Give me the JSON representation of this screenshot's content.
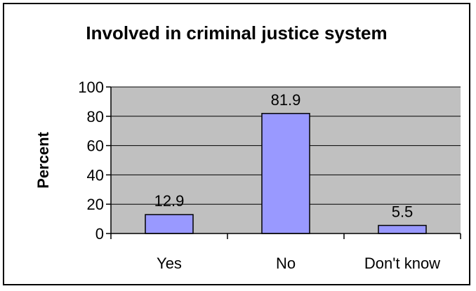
{
  "chart_data": {
    "type": "bar",
    "title": "Involved in criminal justice system",
    "xlabel": "",
    "ylabel": "Percent",
    "categories": [
      "Yes",
      "No",
      "Don't know"
    ],
    "values": [
      12.9,
      81.9,
      5.5
    ],
    "data_labels": [
      "12.9",
      "81.9",
      "5.5"
    ],
    "ylim": [
      0,
      100
    ],
    "yticks": [
      0,
      20,
      40,
      60,
      80,
      100
    ],
    "ytick_labels": [
      "0",
      "20",
      "40",
      "60",
      "80",
      "100"
    ],
    "grid": true,
    "legend": "none",
    "colors": {
      "bar_fill": "#9999ff",
      "bar_stroke": "#000000",
      "plot_background": "#c0c0c0",
      "gridline": "#000000",
      "frame": "#000000"
    }
  }
}
